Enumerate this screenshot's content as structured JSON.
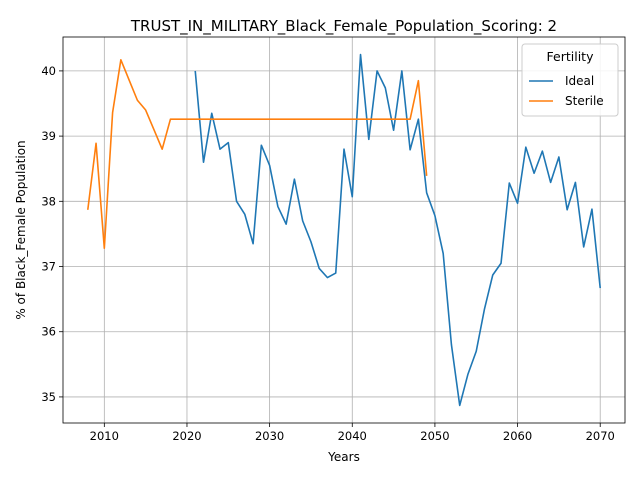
{
  "chart_data": {
    "type": "line",
    "title": "TRUST_IN_MILITARY_Black_Female_Population_Scoring: 2",
    "xlabel": "Years",
    "ylabel": "% of Black_Female Population",
    "xlim": [
      2005,
      2073
    ],
    "ylim": [
      34.6,
      40.52
    ],
    "xticks": [
      2010,
      2020,
      2030,
      2040,
      2050,
      2060,
      2070
    ],
    "yticks": [
      35,
      36,
      37,
      38,
      39,
      40
    ],
    "grid": true,
    "legend": {
      "title": "Fertility",
      "position": "top-right"
    },
    "series": [
      {
        "name": "Ideal",
        "color": "#1f77b4",
        "x": [
          2021,
          2022,
          2023,
          2024,
          2025,
          2026,
          2027,
          2028,
          2029,
          2030,
          2031,
          2032,
          2033,
          2034,
          2035,
          2036,
          2037,
          2038,
          2039,
          2040,
          2041,
          2042,
          2043,
          2044,
          2045,
          2046,
          2047,
          2048,
          2049,
          2050,
          2051,
          2052,
          2053,
          2054,
          2055,
          2056,
          2057,
          2058,
          2059,
          2060,
          2061,
          2062,
          2063,
          2064,
          2065,
          2066,
          2067,
          2068,
          2069,
          2070
        ],
        "y": [
          40.0,
          38.6,
          39.35,
          38.8,
          38.9,
          38.0,
          37.8,
          37.35,
          38.86,
          38.55,
          37.92,
          37.65,
          38.34,
          37.7,
          37.38,
          36.97,
          36.83,
          36.9,
          38.8,
          38.07,
          40.25,
          38.95,
          40.0,
          39.74,
          39.09,
          40.0,
          38.79,
          39.26,
          38.13,
          37.78,
          37.2,
          35.8,
          34.87,
          35.35,
          35.7,
          36.35,
          36.87,
          37.05,
          38.28,
          37.97,
          38.83,
          38.43,
          38.77,
          38.29,
          38.68,
          37.87,
          38.29,
          37.3,
          37.88,
          36.67
        ]
      },
      {
        "name": "Sterile",
        "color": "#ff7f0e",
        "x": [
          2008,
          2009,
          2010,
          2011,
          2012,
          2013,
          2014,
          2015,
          2016,
          2017,
          2018,
          2019,
          2020,
          2021,
          2022,
          2023,
          2024,
          2025,
          2026,
          2027,
          2028,
          2029,
          2030,
          2031,
          2032,
          2033,
          2034,
          2035,
          2036,
          2037,
          2038,
          2039,
          2040,
          2041,
          2042,
          2043,
          2044,
          2045,
          2046,
          2047,
          2048,
          2049
        ],
        "y": [
          37.87,
          38.89,
          37.28,
          39.36,
          40.17,
          39.86,
          39.55,
          39.4,
          39.1,
          38.8,
          39.26,
          39.26,
          39.26,
          39.26,
          39.26,
          39.26,
          39.26,
          39.26,
          39.26,
          39.26,
          39.26,
          39.26,
          39.26,
          39.26,
          39.26,
          39.26,
          39.26,
          39.26,
          39.26,
          39.26,
          39.26,
          39.26,
          39.26,
          39.26,
          39.26,
          39.26,
          39.26,
          39.26,
          39.26,
          39.26,
          39.85,
          38.39
        ]
      }
    ]
  }
}
